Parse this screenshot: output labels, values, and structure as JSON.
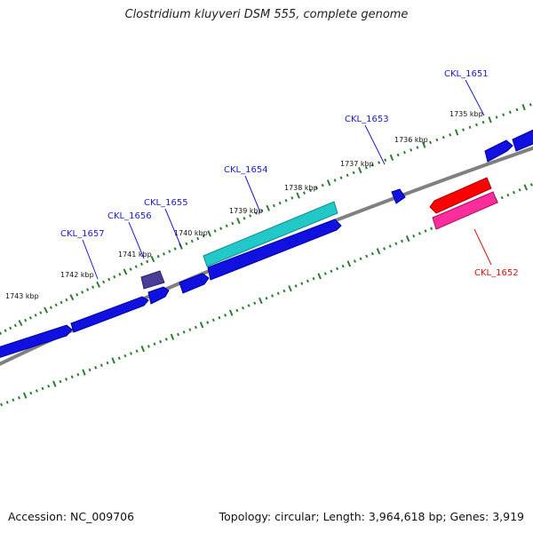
{
  "title": "Clostridium kluyveri DSM 555, complete genome",
  "footer": {
    "accession": "Accession: NC_009706",
    "summary": "Topology: circular; Length: 3,964,618 bp; Genes: 3,919"
  },
  "colors": {
    "background": "#ffffff",
    "backbone": "#808080",
    "ticks": "#2e7d32",
    "forward_gene": "#1010e0",
    "reverse_gene": "#ff0000",
    "highlight_gene": "#22c8c8",
    "highlight_reverse": "#ff2d9b",
    "small_gene": "#4a3d99",
    "label_forward": "#1a1acc",
    "label_reverse": "#dd1111"
  },
  "scale_labels": [
    "1735 kbp",
    "1736 kbp",
    "1737 kbp",
    "1738 kbp",
    "1739 kbp",
    "1740 kbp",
    "1741 kbp",
    "1742 kbp",
    "1743 kbp"
  ],
  "genes": [
    {
      "locus": "CKL_1651",
      "strand": "+"
    },
    {
      "locus": "CKL_1652",
      "strand": "-"
    },
    {
      "locus": "CKL_1653",
      "strand": "+"
    },
    {
      "locus": "CKL_1654",
      "strand": "+"
    },
    {
      "locus": "CKL_1655",
      "strand": "+"
    },
    {
      "locus": "CKL_1656",
      "strand": "+"
    },
    {
      "locus": "CKL_1657",
      "strand": "+"
    }
  ]
}
